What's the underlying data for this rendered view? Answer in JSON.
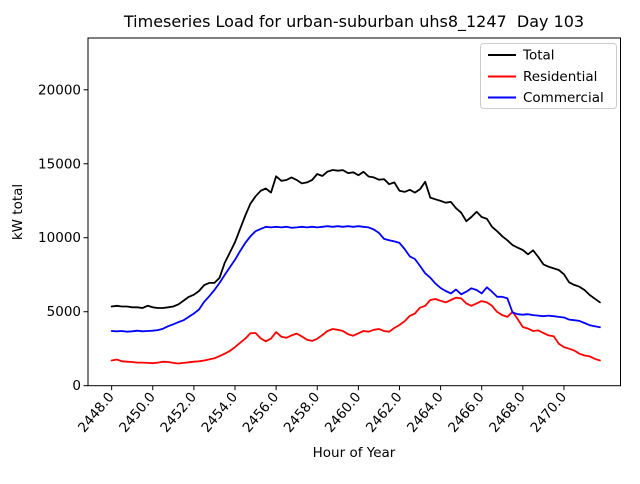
{
  "title": "Timeseries Load for urban-suburban uhs8_1247  Day 103",
  "axes": {
    "xlabel": "Hour of Year",
    "ylabel": "kW total",
    "x_tick_values": [
      2448,
      2450,
      2452,
      2454,
      2456,
      2458,
      2460,
      2462,
      2464,
      2466,
      2468,
      2470
    ],
    "x_tick_labels": [
      "2448.0",
      "2450.0",
      "2452.0",
      "2454.0",
      "2456.0",
      "2458.0",
      "2460.0",
      "2462.0",
      "2464.0",
      "2466.0",
      "2468.0",
      "2470.0"
    ],
    "y_tick_values": [
      0,
      5000,
      10000,
      15000,
      20000
    ],
    "y_tick_labels": [
      "0",
      "5000",
      "10000",
      "15000",
      "20000"
    ],
    "xlim": [
      2446.85,
      2472.75
    ],
    "ylim": [
      0,
      23500
    ]
  },
  "legend": {
    "entries": [
      {
        "label": "Total",
        "color": "#000000"
      },
      {
        "label": "Residential",
        "color": "#ff0000"
      },
      {
        "label": "Commercial",
        "color": "#0000ff"
      }
    ]
  },
  "chart_data": {
    "type": "line",
    "title": "Timeseries Load for urban-suburban uhs8_1247  Day 103",
    "xlabel": "Hour of Year",
    "ylabel": "kW total",
    "x_units": "hour of year (15-minute resolution)",
    "y_units": "kW",
    "xlim": [
      2446.85,
      2472.75
    ],
    "ylim": [
      0,
      23500
    ],
    "grid": false,
    "legend_position": "upper right",
    "x": [
      2448.0,
      2448.25,
      2448.5,
      2448.75,
      2449.0,
      2449.25,
      2449.5,
      2449.75,
      2450.0,
      2450.25,
      2450.5,
      2450.75,
      2451.0,
      2451.25,
      2451.5,
      2451.75,
      2452.0,
      2452.25,
      2452.5,
      2452.75,
      2453.0,
      2453.25,
      2453.5,
      2453.75,
      2454.0,
      2454.25,
      2454.5,
      2454.75,
      2455.0,
      2455.25,
      2455.5,
      2455.75,
      2456.0,
      2456.25,
      2456.5,
      2456.75,
      2457.0,
      2457.25,
      2457.5,
      2457.75,
      2458.0,
      2458.25,
      2458.5,
      2458.75,
      2459.0,
      2459.25,
      2459.5,
      2459.75,
      2460.0,
      2460.25,
      2460.5,
      2460.75,
      2461.0,
      2461.25,
      2461.5,
      2461.75,
      2462.0,
      2462.25,
      2462.5,
      2462.75,
      2463.0,
      2463.25,
      2463.5,
      2463.75,
      2464.0,
      2464.25,
      2464.5,
      2464.75,
      2465.0,
      2465.25,
      2465.5,
      2465.75,
      2466.0,
      2466.25,
      2466.5,
      2466.75,
      2467.0,
      2467.25,
      2467.5,
      2467.75,
      2468.0,
      2468.25,
      2468.5,
      2468.75,
      2469.0,
      2469.25,
      2469.5,
      2469.75,
      2470.0,
      2470.25,
      2470.5,
      2470.75,
      2471.0,
      2471.25,
      2471.5,
      2471.75
    ],
    "series": [
      {
        "name": "Total",
        "color": "#000000",
        "values": [
          5350,
          5400,
          5350,
          5350,
          5300,
          5300,
          5250,
          5400,
          5300,
          5250,
          5250,
          5300,
          5350,
          5500,
          5750,
          6000,
          6150,
          6400,
          6800,
          6950,
          6950,
          7300,
          8300,
          9000,
          9700,
          10600,
          11500,
          12300,
          12800,
          13170,
          13330,
          13050,
          14150,
          13850,
          13900,
          14080,
          13900,
          13670,
          13740,
          13900,
          14310,
          14170,
          14470,
          14580,
          14530,
          14570,
          14370,
          14420,
          14230,
          14460,
          14140,
          14080,
          13920,
          13960,
          13620,
          13740,
          13170,
          13100,
          13240,
          13050,
          13280,
          13780,
          12710,
          12600,
          12490,
          12370,
          12420,
          12000,
          11690,
          11120,
          11400,
          11750,
          11400,
          11280,
          10740,
          10440,
          10100,
          9830,
          9500,
          9330,
          9170,
          8880,
          9150,
          8700,
          8200,
          8040,
          7930,
          7820,
          7530,
          6990,
          6810,
          6690,
          6470,
          6130,
          5880,
          5640
        ]
      },
      {
        "name": "Residential",
        "color": "#ff0000",
        "values": [
          1700,
          1770,
          1650,
          1620,
          1600,
          1560,
          1560,
          1540,
          1520,
          1560,
          1620,
          1600,
          1540,
          1500,
          1540,
          1580,
          1620,
          1650,
          1700,
          1780,
          1850,
          2000,
          2160,
          2350,
          2610,
          2900,
          3180,
          3540,
          3560,
          3200,
          3000,
          3180,
          3620,
          3310,
          3240,
          3400,
          3520,
          3330,
          3100,
          3030,
          3170,
          3430,
          3700,
          3830,
          3780,
          3700,
          3480,
          3380,
          3540,
          3700,
          3650,
          3780,
          3830,
          3700,
          3650,
          3900,
          4100,
          4360,
          4720,
          4880,
          5270,
          5400,
          5790,
          5860,
          5740,
          5630,
          5790,
          5950,
          5900,
          5560,
          5400,
          5560,
          5720,
          5630,
          5400,
          4990,
          4770,
          4650,
          5000,
          4500,
          3970,
          3860,
          3700,
          3740,
          3560,
          3400,
          3340,
          2840,
          2610,
          2500,
          2380,
          2160,
          2040,
          1980,
          1820,
          1700
        ]
      },
      {
        "name": "Commercial",
        "color": "#0000ff",
        "values": [
          3700,
          3680,
          3700,
          3650,
          3680,
          3720,
          3680,
          3700,
          3720,
          3760,
          3850,
          4020,
          4150,
          4300,
          4430,
          4650,
          4880,
          5150,
          5670,
          6050,
          6470,
          6950,
          7490,
          8000,
          8510,
          9100,
          9650,
          10100,
          10440,
          10600,
          10740,
          10700,
          10740,
          10700,
          10740,
          10670,
          10700,
          10740,
          10700,
          10740,
          10700,
          10740,
          10780,
          10740,
          10780,
          10740,
          10780,
          10740,
          10780,
          10740,
          10700,
          10560,
          10330,
          9920,
          9830,
          9750,
          9650,
          9240,
          8740,
          8560,
          8100,
          7600,
          7300,
          6900,
          6600,
          6400,
          6240,
          6500,
          6180,
          6350,
          6580,
          6470,
          6240,
          6650,
          6350,
          6010,
          6010,
          5900,
          4950,
          4830,
          4800,
          4830,
          4770,
          4740,
          4700,
          4740,
          4700,
          4650,
          4610,
          4470,
          4430,
          4380,
          4240,
          4090,
          4020,
          3950
        ]
      }
    ]
  }
}
